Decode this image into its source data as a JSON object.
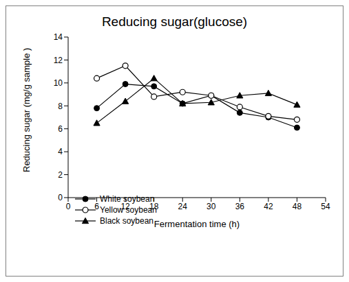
{
  "chart_data": {
    "type": "line",
    "title": "Reducing sugar(glucose)",
    "x_label": "Fermentation time (h)",
    "y_label": "Reducing sugar (mg/g sample )",
    "x": [
      6,
      12,
      18,
      24,
      30,
      36,
      42,
      48
    ],
    "series": [
      {
        "name": "White soybean",
        "color": "#000000",
        "marker": "circle",
        "line_style": "solid",
        "values": [
          7.8,
          9.9,
          9.7,
          8.2,
          8.9,
          7.4,
          7.0,
          6.1
        ]
      },
      {
        "name": "Yellow soybean",
        "color": "#000000",
        "marker": "open_circle",
        "line_style": "solid",
        "values": [
          10.4,
          11.5,
          8.8,
          9.2,
          8.9,
          7.9,
          7.1,
          6.8
        ]
      },
      {
        "name": "Black soybean",
        "color": "#000000",
        "marker": "triangle",
        "line_style": "solid",
        "values": [
          6.5,
          8.4,
          10.4,
          8.2,
          8.3,
          8.9,
          9.1,
          8.1
        ]
      }
    ],
    "xlim": [
      0,
      54
    ],
    "xticks": [
      0,
      6,
      12,
      18,
      24,
      30,
      36,
      42,
      48,
      54
    ],
    "ylim": [
      0,
      14
    ],
    "yticks": [
      0,
      2,
      4,
      6,
      8,
      10,
      12,
      14
    ],
    "grid": false,
    "legend": "lower left"
  }
}
